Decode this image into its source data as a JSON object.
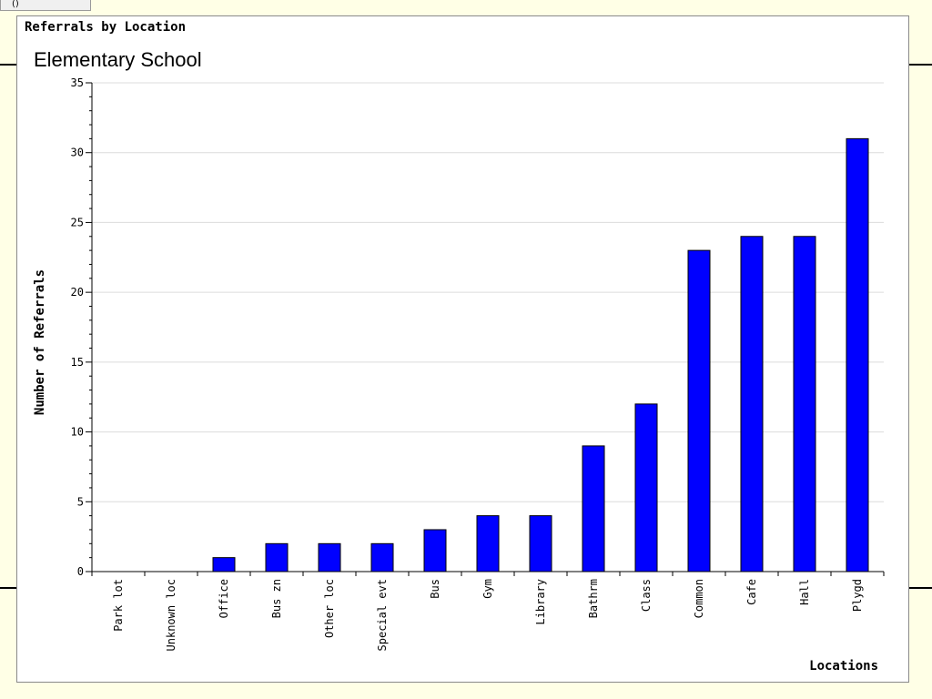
{
  "window": {
    "tab_label": "()"
  },
  "chart_data": {
    "type": "bar",
    "title": "Referrals by Location",
    "subtitle": "Elementary School",
    "xlabel": "Locations",
    "ylabel": "Number of Referrals",
    "ylim": [
      0,
      35
    ],
    "yticks": [
      0,
      5,
      10,
      15,
      20,
      25,
      30,
      35
    ],
    "grid": true,
    "bar_color": "#0000ff",
    "categories": [
      "Park lot",
      "Unknown loc",
      "Office",
      "Bus zn",
      "Other loc",
      "Special evt",
      "Bus",
      "Gym",
      "Library",
      "Bathrm",
      "Class",
      "Common",
      "Cafe",
      "Hall",
      "Plygd"
    ],
    "values": [
      0,
      0,
      1,
      2,
      2,
      2,
      3,
      4,
      4,
      9,
      12,
      23,
      24,
      24,
      31
    ]
  }
}
